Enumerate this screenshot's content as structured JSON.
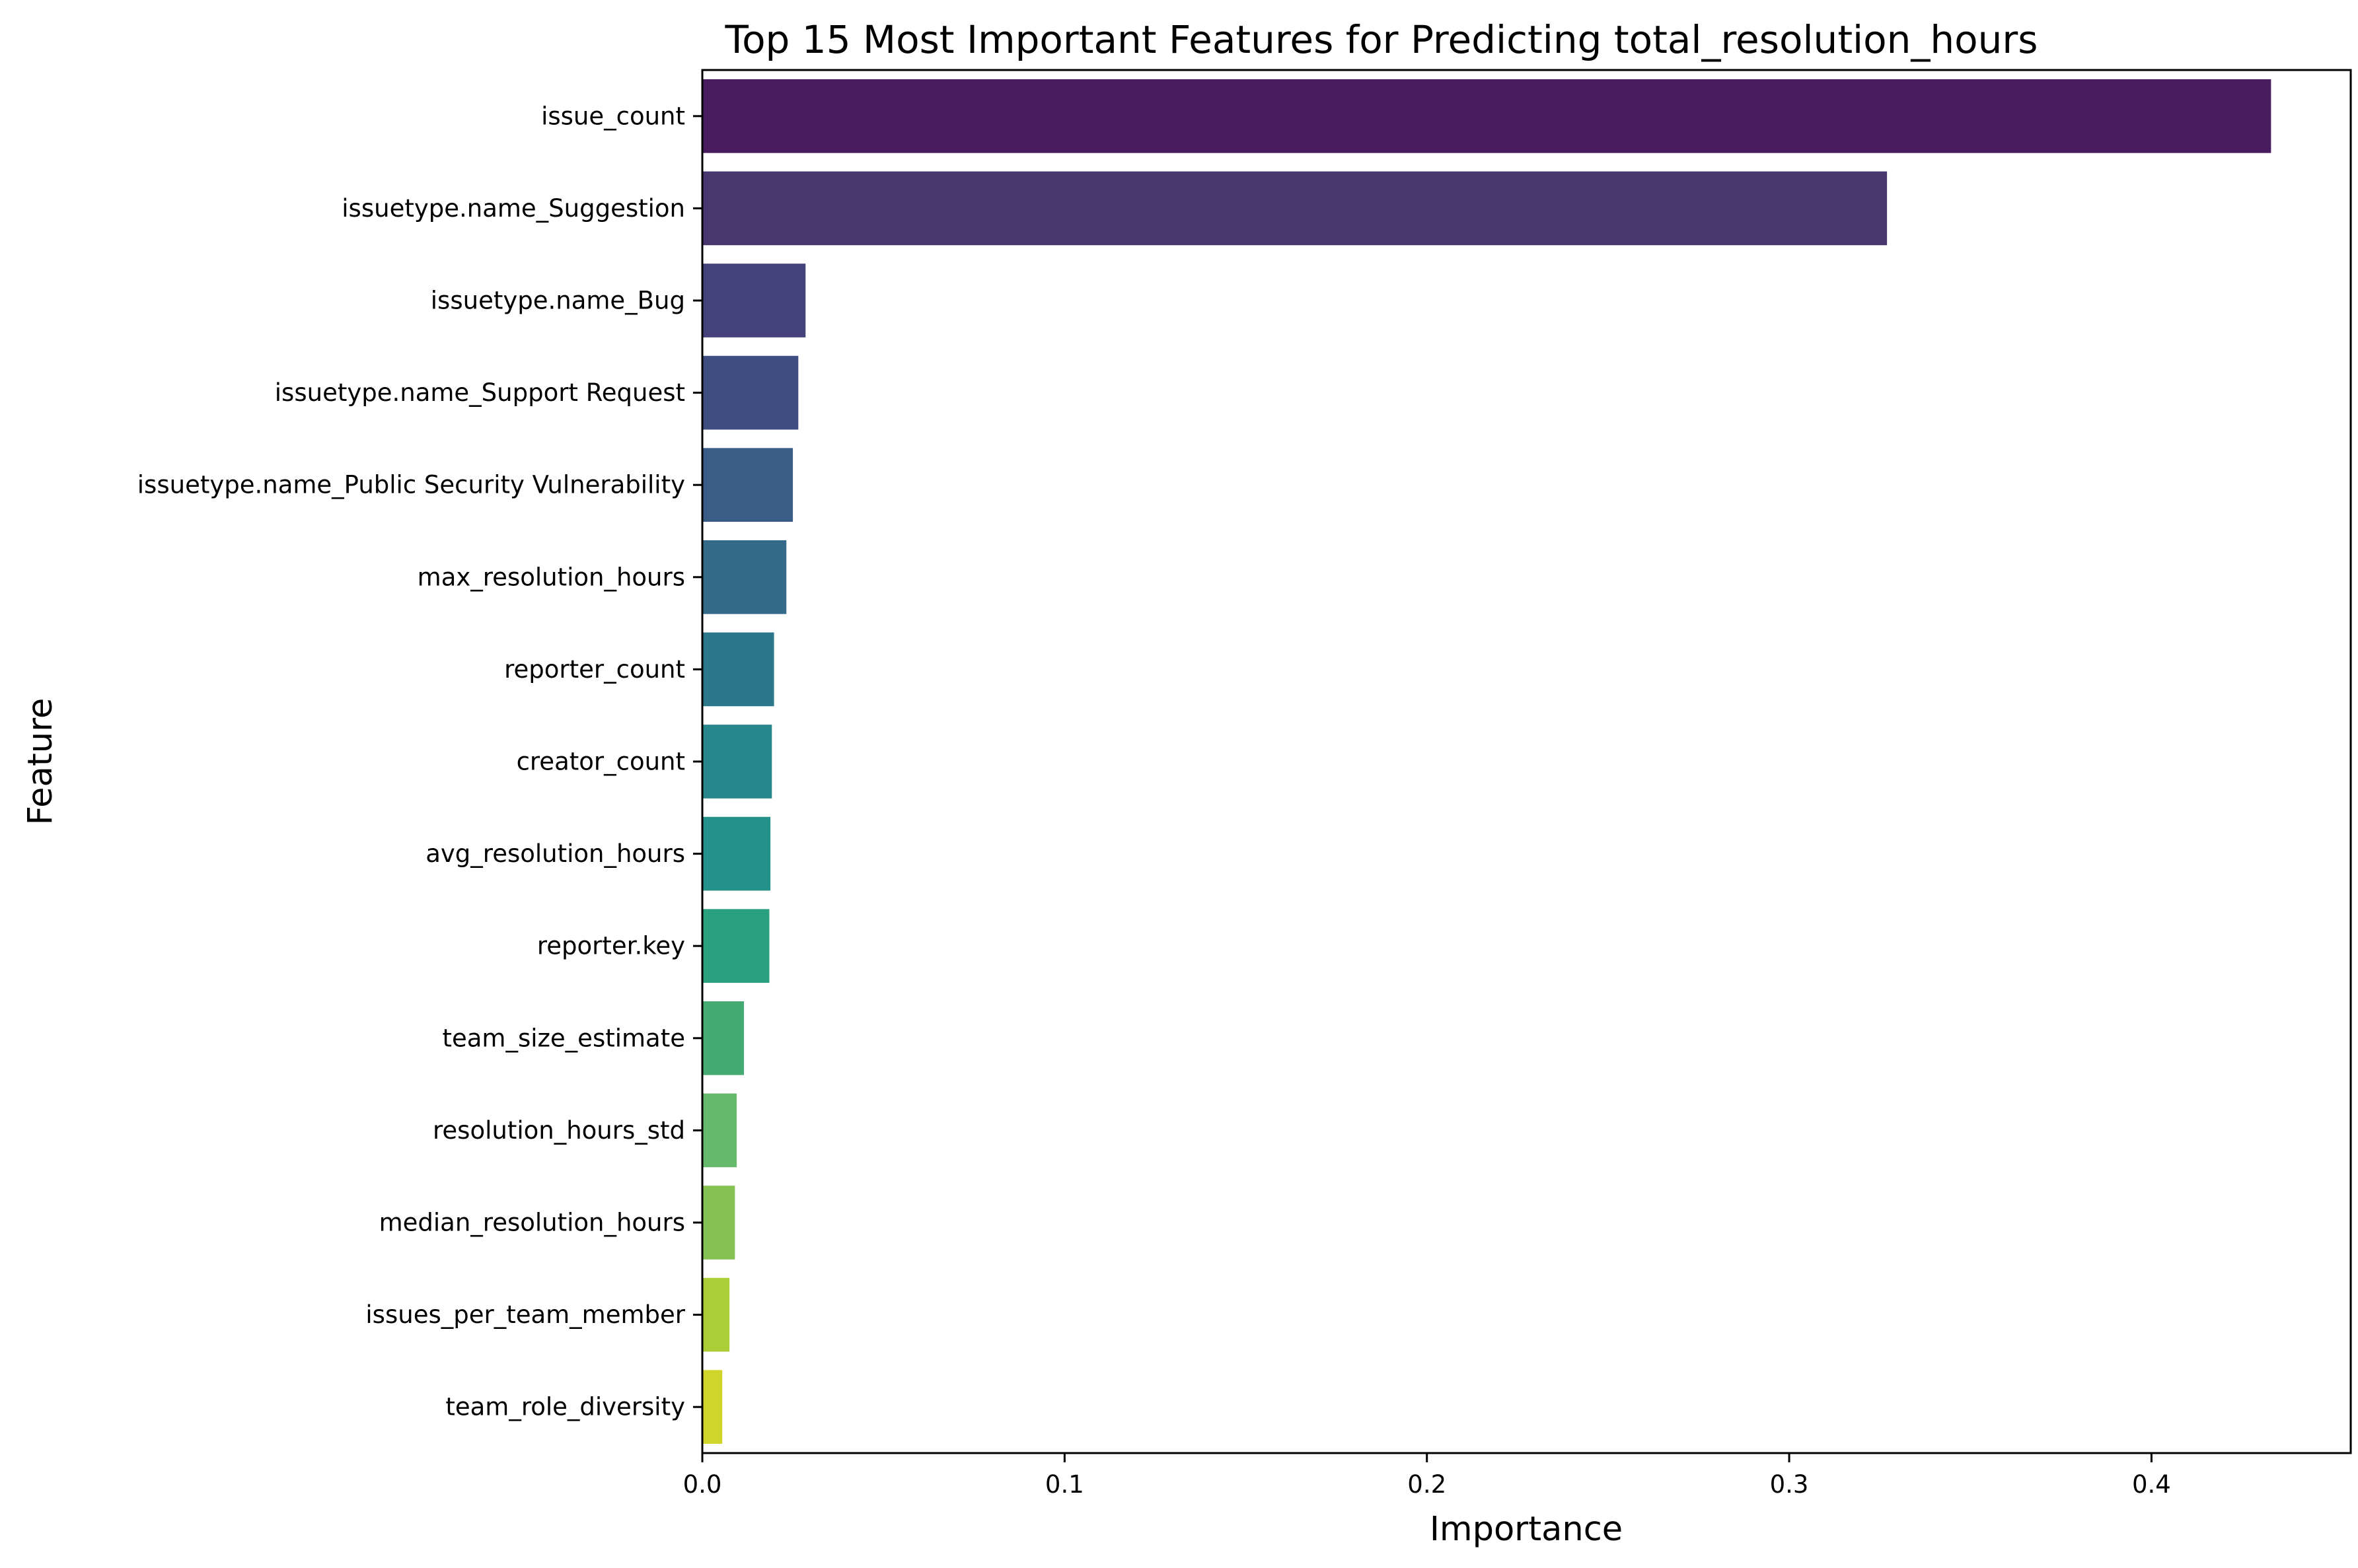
{
  "chart_data": {
    "type": "bar",
    "orientation": "horizontal",
    "title": "Top 15 Most Important Features for Predicting total_resolution_hours",
    "xlabel": "Importance",
    "ylabel": "Feature",
    "xlim": [
      0,
      0.455
    ],
    "xticks": [
      0.0,
      0.1,
      0.2,
      0.3,
      0.4
    ],
    "xtick_labels": [
      "0.0",
      "0.1",
      "0.2",
      "0.3",
      "0.4"
    ],
    "grid": false,
    "categories": [
      "issue_count",
      "issuetype.name_Suggestion",
      "issuetype.name_Bug",
      "issuetype.name_Support Request",
      "issuetype.name_Public Security Vulnerability",
      "max_resolution_hours",
      "reporter_count",
      "creator_count",
      "avg_resolution_hours",
      "reporter.key",
      "team_size_estimate",
      "resolution_hours_std",
      "median_resolution_hours",
      "issues_per_team_member",
      "team_role_diversity"
    ],
    "values": [
      0.433,
      0.327,
      0.0285,
      0.0265,
      0.025,
      0.0232,
      0.0198,
      0.0192,
      0.0188,
      0.0185,
      0.0115,
      0.0095,
      0.009,
      0.0075,
      0.0055
    ],
    "colors": [
      "#481c5e",
      "#48366f",
      "#45427b",
      "#3f4e82",
      "#3a5d87",
      "#336a89",
      "#2d778b",
      "#28868d",
      "#24928b",
      "#2ba07e",
      "#45ab72",
      "#64b96a",
      "#86c253",
      "#abcd35",
      "#cfd52a"
    ]
  }
}
